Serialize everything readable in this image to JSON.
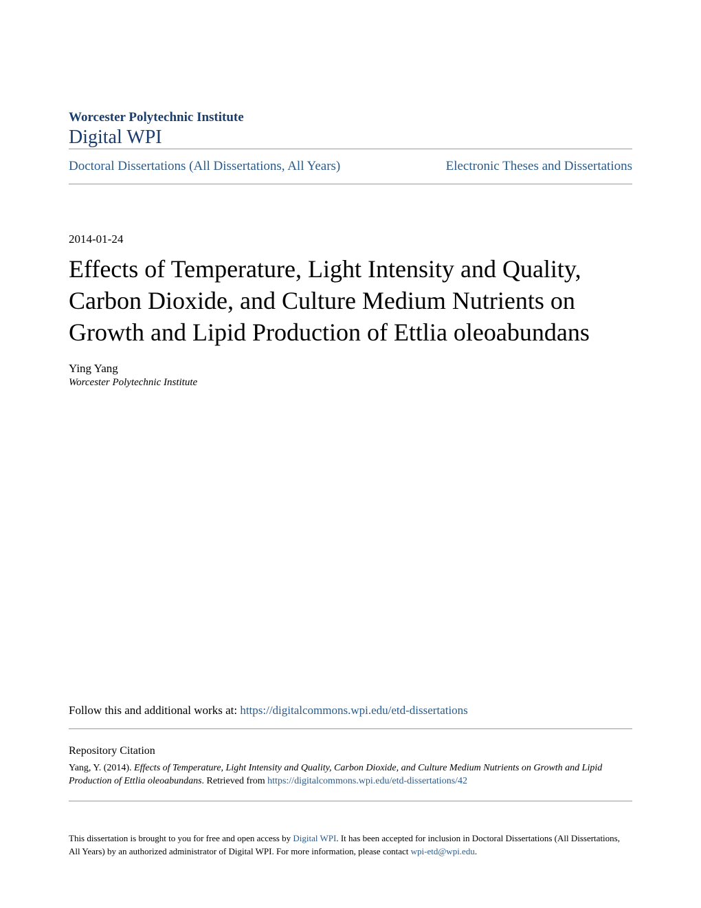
{
  "header": {
    "institution": "Worcester Polytechnic Institute",
    "repository": "Digital WPI"
  },
  "nav": {
    "left_link": "Doctoral Dissertations (All Dissertations, All Years)",
    "right_link": "Electronic Theses and Dissertations"
  },
  "document": {
    "date": "2014-01-24",
    "title": "Effects of Temperature, Light Intensity and Quality, Carbon Dioxide, and Culture Medium Nutrients on Growth and Lipid Production of Ettlia oleoabundans",
    "author": "Ying Yang",
    "affiliation": "Worcester Polytechnic Institute"
  },
  "follow": {
    "prefix": "Follow this and additional works at: ",
    "url": "https://digitalcommons.wpi.edu/etd-dissertations"
  },
  "citation": {
    "heading": "Repository Citation",
    "author_year": "Yang, Y. (2014). ",
    "title_italic": "Effects of Temperature, Light Intensity and Quality, Carbon Dioxide, and Culture Medium Nutrients on Growth and Lipid Production of Ettlia oleoabundans",
    "retrieved": ". Retrieved from ",
    "url": "https://digitalcommons.wpi.edu/etd-dissertations/42"
  },
  "footer": {
    "text_1": "This dissertation is brought to you for free and open access by ",
    "link_1": "Digital WPI",
    "text_2": ". It has been accepted for inclusion in Doctoral Dissertations (All Dissertations, All Years) by an authorized administrator of Digital WPI. For more information, please contact ",
    "link_2": "wpi-etd@wpi.edu",
    "text_3": "."
  },
  "colors": {
    "link_blue": "#2a5a8a",
    "header_blue": "#1a3d6d",
    "text_black": "#000000",
    "border_gray": "#999999",
    "background": "#ffffff"
  }
}
